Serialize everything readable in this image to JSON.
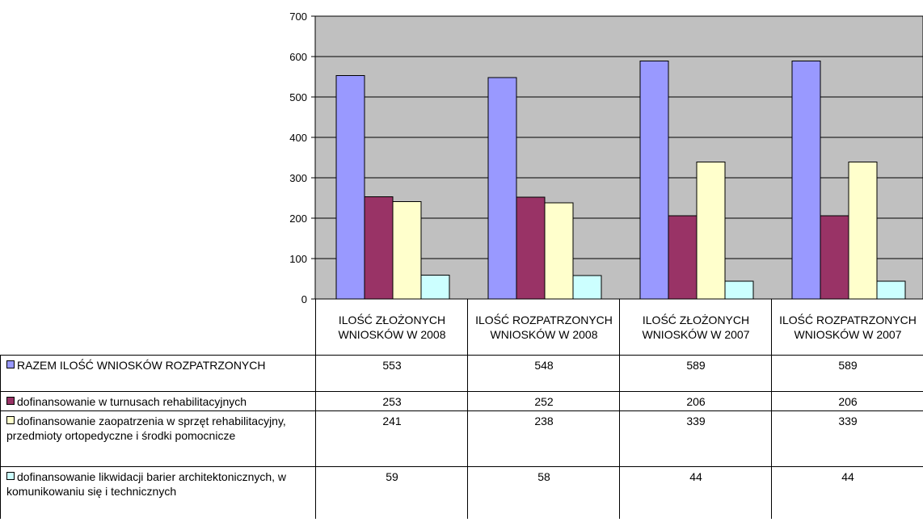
{
  "chart_data": {
    "type": "bar",
    "categories": [
      "ILOŚĆ ZŁOŻONYCH WNIOSKÓW  W 2008",
      "ILOŚĆ ROZPATRZONYCH WNIOSKÓW W 2008",
      "ILOŚĆ ZŁOŻONYCH WNIOSKÓW  W 2007",
      "ILOŚĆ ROZPATRZONYCH WNIOSKÓW W 2007"
    ],
    "series": [
      {
        "name": "RAZEM ILOŚĆ WNIOSKÓW ROZPATRZONYCH",
        "color": "#9999ff",
        "values": [
          553,
          548,
          589,
          589
        ]
      },
      {
        "name": "dofinansowanie w turnusach rehabilitacyjnych",
        "color": "#993366",
        "values": [
          253,
          252,
          206,
          206
        ]
      },
      {
        "name": "dofinansowanie zaopatrzenia w sprzęt rehabilitacyjny, przedmioty ortopedyczne i środki pomocnicze",
        "color": "#ffffcc",
        "values": [
          241,
          238,
          339,
          339
        ]
      },
      {
        "name": "dofinansowanie likwidacji barier architektonicznych, w komunikowaniu się i technicznych",
        "color": "#ccffff",
        "values": [
          59,
          58,
          44,
          44
        ]
      }
    ],
    "ylim": [
      0,
      700
    ],
    "yticks": [
      0,
      100,
      200,
      300,
      400,
      500,
      600,
      700
    ],
    "plot_background": "#c0c0c0",
    "grid": true,
    "legend": "data-table"
  }
}
